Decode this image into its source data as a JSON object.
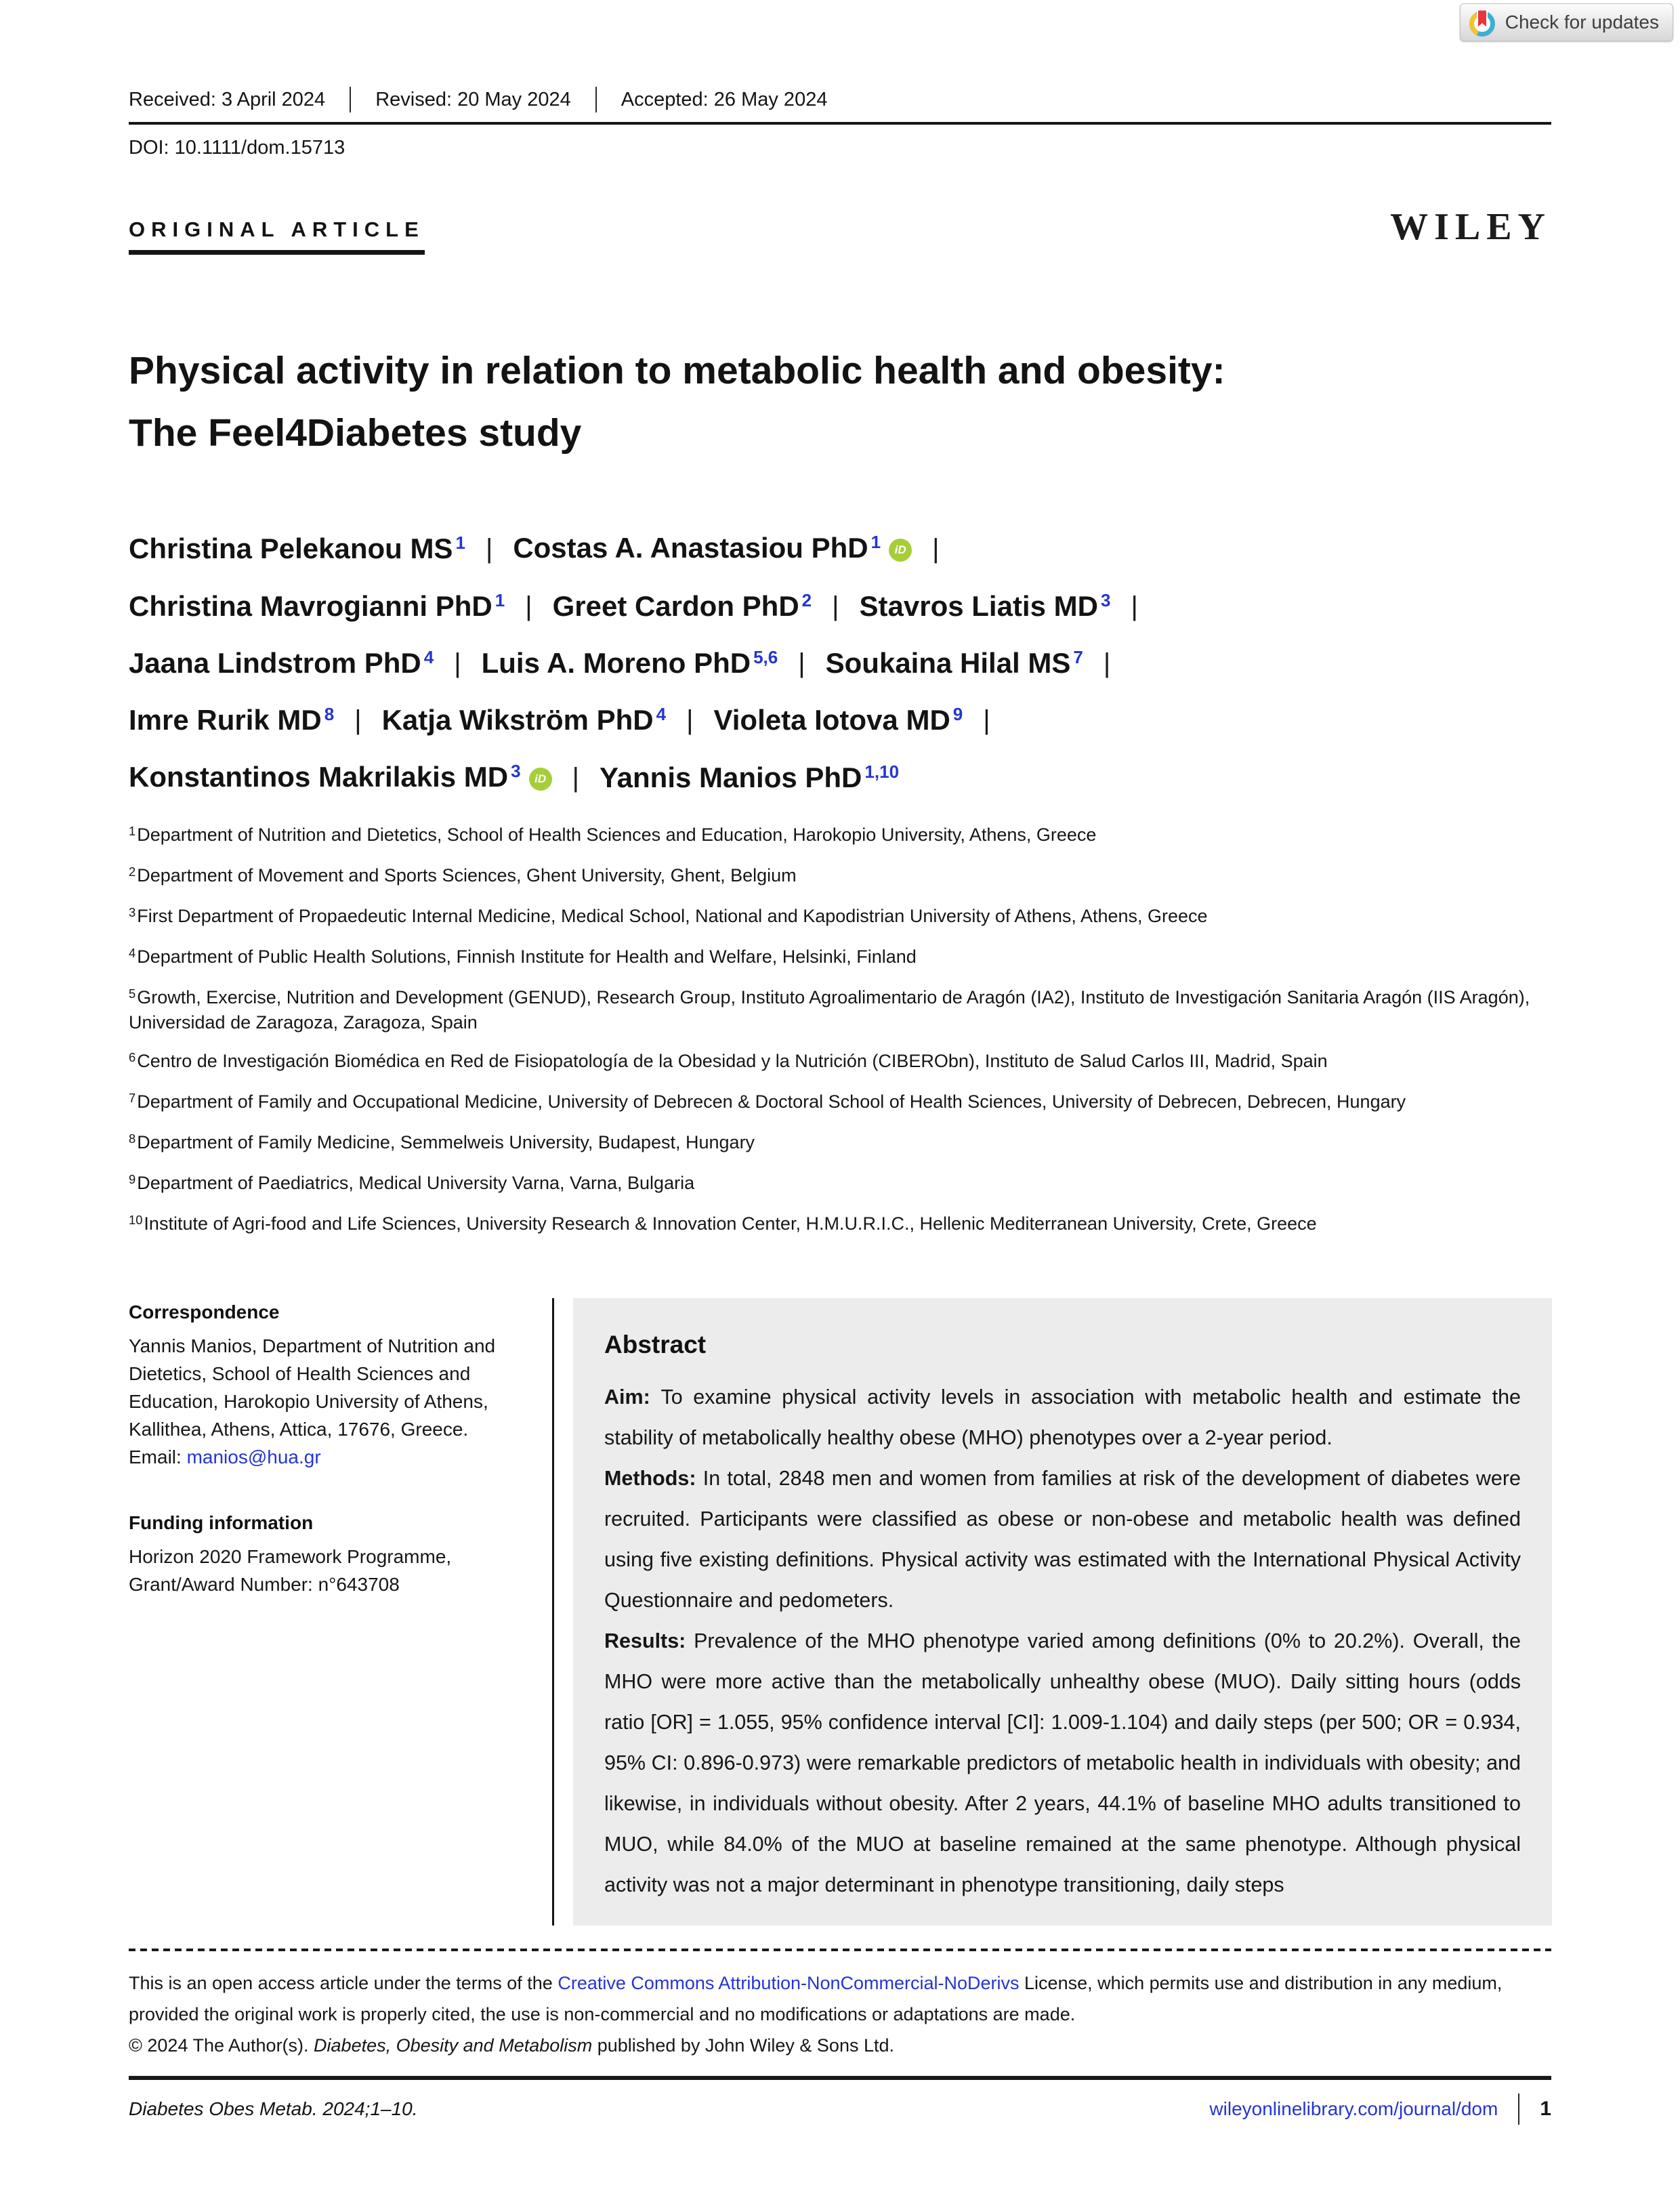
{
  "header": {
    "received": "Received: 3 April 2024",
    "revised": "Revised: 20 May 2024",
    "accepted": "Accepted: 26 May 2024",
    "doi": "DOI: 10.1111/dom.15713",
    "article_type": "ORIGINAL ARTICLE",
    "publisher_logo": "WILEY",
    "check_for_updates": "Check for updates"
  },
  "title_lines": [
    "Physical activity in relation to metabolic health and obesity:",
    "The Feel4Diabetes study"
  ],
  "author_lines": [
    [
      {
        "name": "Christina Pelekanou MS",
        "sup": "1",
        "orcid": false
      },
      {
        "name": "Costas A. Anastasiou PhD",
        "sup": "1",
        "orcid": true
      }
    ],
    [
      {
        "name": "Christina Mavrogianni PhD",
        "sup": "1",
        "orcid": false
      },
      {
        "name": "Greet Cardon PhD",
        "sup": "2",
        "orcid": false
      },
      {
        "name": "Stavros Liatis MD",
        "sup": "3",
        "orcid": false
      }
    ],
    [
      {
        "name": "Jaana Lindstrom PhD",
        "sup": "4",
        "orcid": false
      },
      {
        "name": "Luis A. Moreno PhD",
        "sup": "5,6",
        "orcid": false
      },
      {
        "name": "Soukaina Hilal MS",
        "sup": "7",
        "orcid": false
      }
    ],
    [
      {
        "name": "Imre Rurik MD",
        "sup": "8",
        "orcid": false
      },
      {
        "name": "Katja Wikström PhD",
        "sup": "4",
        "orcid": false
      },
      {
        "name": "Violeta Iotova MD",
        "sup": "9",
        "orcid": false
      }
    ],
    [
      {
        "name": "Konstantinos Makrilakis MD",
        "sup": "3",
        "orcid": true
      },
      {
        "name": "Yannis Manios PhD",
        "sup": "1,10",
        "orcid": false
      }
    ]
  ],
  "affiliations": [
    {
      "sup": "1",
      "text": "Department of Nutrition and Dietetics, School of Health Sciences and Education, Harokopio University, Athens, Greece"
    },
    {
      "sup": "2",
      "text": "Department of Movement and Sports Sciences, Ghent University, Ghent, Belgium"
    },
    {
      "sup": "3",
      "text": "First Department of Propaedeutic Internal Medicine, Medical School, National and Kapodistrian University of Athens, Athens, Greece"
    },
    {
      "sup": "4",
      "text": "Department of Public Health Solutions, Finnish Institute for Health and Welfare, Helsinki, Finland"
    },
    {
      "sup": "5",
      "text": "Growth, Exercise, Nutrition and Development (GENUD), Research Group, Instituto Agroalimentario de Aragón (IA2), Instituto de Investigación Sanitaria Aragón (IIS Aragón), Universidad de Zaragoza, Zaragoza, Spain"
    },
    {
      "sup": "6",
      "text": "Centro de Investigación Biomédica en Red de Fisiopatología de la Obesidad y la Nutrición (CIBERObn), Instituto de Salud Carlos III, Madrid, Spain"
    },
    {
      "sup": "7",
      "text": "Department of Family and Occupational Medicine, University of Debrecen & Doctoral School of Health Sciences, University of Debrecen, Debrecen, Hungary"
    },
    {
      "sup": "8",
      "text": "Department of Family Medicine, Semmelweis University, Budapest, Hungary"
    },
    {
      "sup": "9",
      "text": "Department of Paediatrics, Medical University Varna, Varna, Bulgaria"
    },
    {
      "sup": "10",
      "text": "Institute of Agri-food and Life Sciences, University Research & Innovation Center, H.M.U.R.I.C., Hellenic Mediterranean University, Crete, Greece"
    }
  ],
  "correspondence": {
    "heading": "Correspondence",
    "body": "Yannis Manios, Department of Nutrition and Dietetics, School of Health Sciences and Education, Harokopio University of Athens, Kallithea, Athens, Attica, 17676, Greece.",
    "email_label": "Email: ",
    "email": "manios@hua.gr"
  },
  "funding": {
    "heading": "Funding information",
    "body": "Horizon 2020 Framework Programme, Grant/Award Number: n°643708"
  },
  "abstract": {
    "heading": "Abstract",
    "sections": [
      {
        "label": "Aim:",
        "text": "To examine physical activity levels in association with metabolic health and estimate the stability of metabolically healthy obese (MHO) phenotypes over a 2-year period."
      },
      {
        "label": "Methods:",
        "text": "In total, 2848 men and women from families at risk of the development of diabetes were recruited. Participants were classified as obese or non-obese and metabolic health was defined using five existing definitions. Physical activity was estimated with the International Physical Activity Questionnaire and pedometers."
      },
      {
        "label": "Results:",
        "text": "Prevalence of the MHO phenotype varied among definitions (0% to 20.2%). Overall, the MHO were more active than the metabolically unhealthy obese (MUO). Daily sitting hours (odds ratio [OR] = 1.055, 95% confidence interval [CI]: 1.009-1.104) and daily steps (per 500; OR = 0.934, 95% CI: 0.896-0.973) were remarkable predictors of metabolic health in individuals with obesity; and likewise, in individuals without obesity. After 2 years, 44.1% of baseline MHO adults transitioned to MUO, while 84.0% of the MUO at baseline remained at the same phenotype. Although physical activity was not a major determinant in phenotype transitioning, daily steps"
      }
    ]
  },
  "license": {
    "pre": "This is an open access article under the terms of the ",
    "link": "Creative Commons Attribution-NonCommercial-NoDerivs",
    "post": " License, which permits use and distribution in any medium, provided the original work is properly cited, the use is non-commercial and no modifications or adaptations are made.",
    "copyright_pre": "© 2024 The Author(s). ",
    "journal_italic": "Diabetes, Obesity and Metabolism",
    "copyright_post": " published by John Wiley & Sons Ltd."
  },
  "footer": {
    "citation": "Diabetes Obes Metab. 2024;1–10.",
    "link": "wileyonlinelibrary.com/journal/dom",
    "page_number": "1"
  },
  "colors": {
    "accent_blue": "#2435d3",
    "orcid_green": "#a6ce39",
    "abstract_bg": "#ececec"
  }
}
